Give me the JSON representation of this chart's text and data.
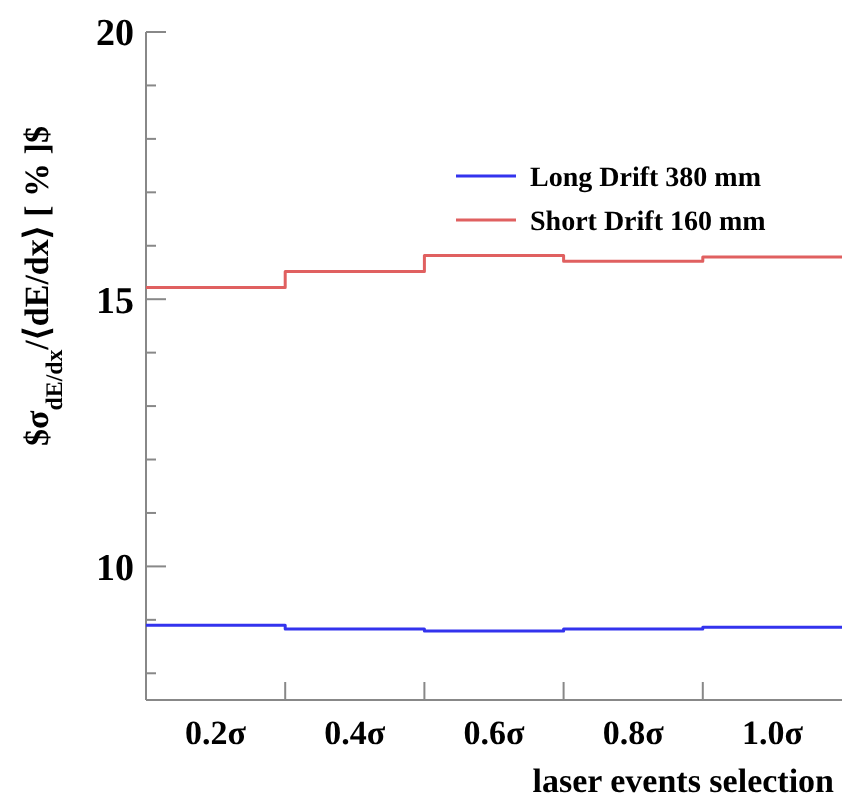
{
  "chart_data": {
    "type": "histogram",
    "ylabel": "$σ$_{dE/dx}$/⟨dE/dx⟩ [ % ]$",
    "xlabel": "laser events selection",
    "bins": [
      0.1,
      0.3,
      0.5,
      0.7,
      0.9,
      1.1
    ],
    "xlim": [
      0.1,
      1.1
    ],
    "xticks": [
      {
        "value": 0.2,
        "label": "0.2σ"
      },
      {
        "value": 0.3,
        "label": null
      },
      {
        "value": 0.4,
        "label": "0.4σ"
      },
      {
        "value": 0.5,
        "label": null
      },
      {
        "value": 0.6,
        "label": "0.6σ"
      },
      {
        "value": 0.7,
        "label": null
      },
      {
        "value": 0.8,
        "label": "0.8σ"
      },
      {
        "value": 0.9,
        "label": null
      },
      {
        "value": 1.0,
        "label": "1.0σ"
      }
    ],
    "series": [
      {
        "name": "Long Drift 380 mm",
        "color": "#3333ee",
        "values": [
          8.9,
          8.83,
          8.79,
          8.83,
          8.86
        ]
      },
      {
        "name": "Short Drift 160 mm",
        "color": "#e06060",
        "values": [
          15.22,
          15.52,
          15.82,
          15.71,
          15.79
        ]
      }
    ],
    "ylim": [
      7.5,
      20
    ],
    "yticks": [
      {
        "value": 8,
        "label": null
      },
      {
        "value": 9,
        "label": null
      },
      10,
      {
        "value": 11,
        "label": null
      },
      {
        "value": 12,
        "label": null
      },
      {
        "value": 13,
        "label": null
      },
      {
        "value": 14,
        "label": null
      },
      15,
      {
        "value": 16,
        "label": null
      },
      {
        "value": 17,
        "label": null
      },
      {
        "value": 18,
        "label": null
      },
      {
        "value": 19,
        "label": null
      },
      20
    ],
    "legend": "top right"
  }
}
